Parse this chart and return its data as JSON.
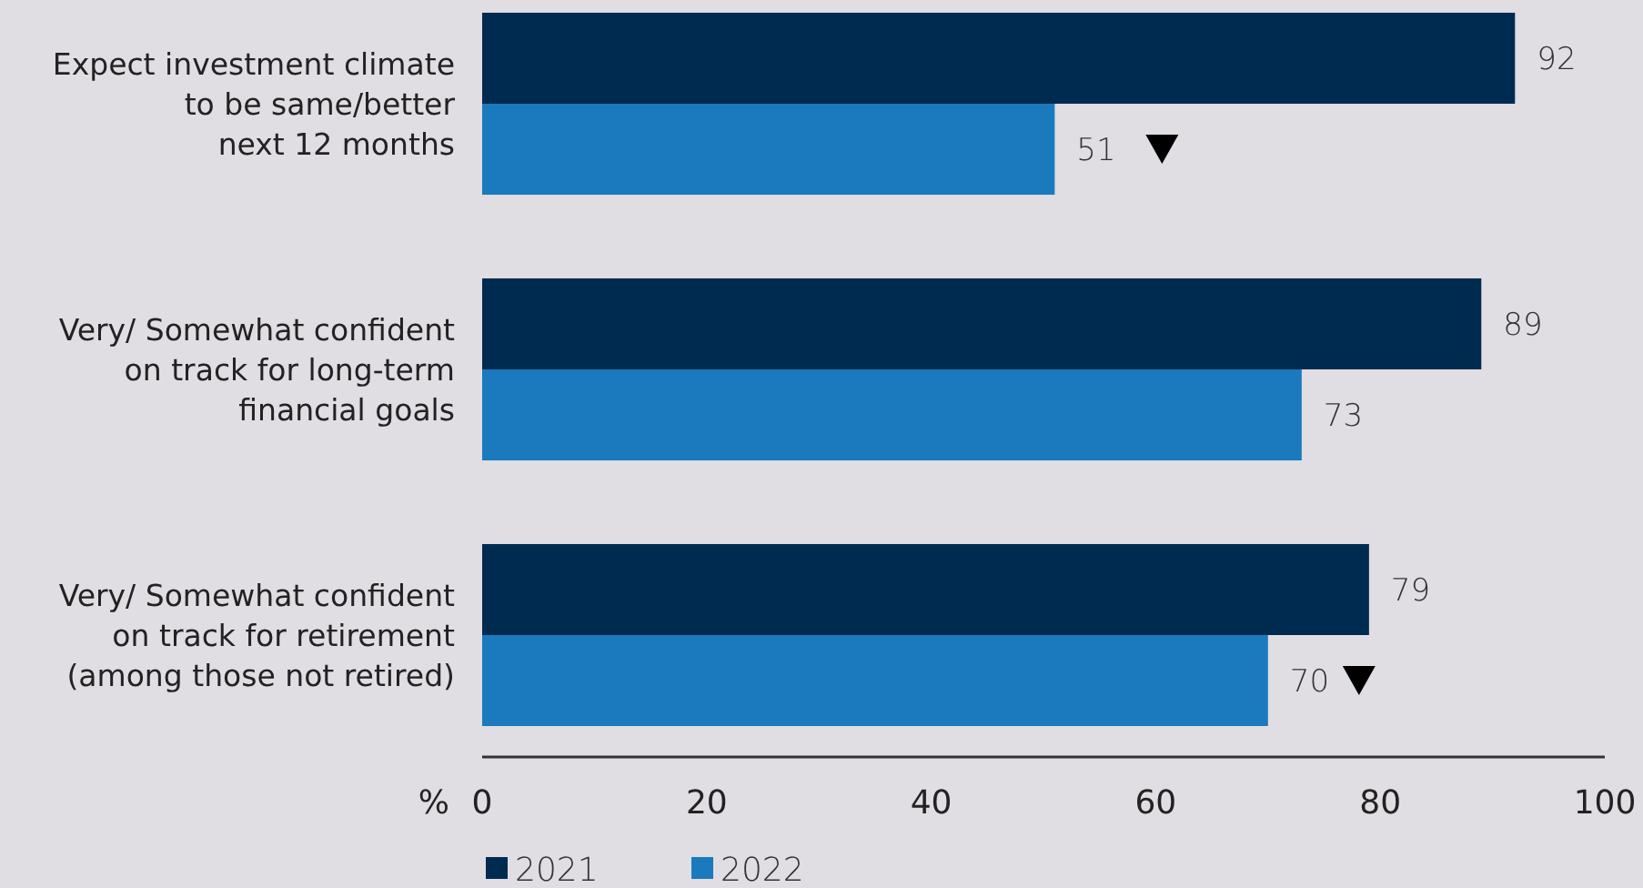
{
  "chart_data": {
    "type": "bar",
    "orientation": "horizontal",
    "xlabel": "%",
    "categories": [
      "Expect investment climate\nto be same/better\nnext 12 months",
      "Very/ Somewhat confident\non track for long-term\nfinancial goals",
      "Very/ Somewhat confident\non track for retirement\n(among those not retired)"
    ],
    "series": [
      {
        "name": "2021",
        "color": "#002b50",
        "values": [
          92,
          89,
          79
        ]
      },
      {
        "name": "2022",
        "color": "#1a7abd",
        "values": [
          51,
          73,
          70
        ]
      }
    ],
    "xlim": [
      0,
      100
    ],
    "xticks": [
      0,
      20,
      40,
      60,
      80,
      100
    ],
    "data_labels": true,
    "grid": false,
    "legend": "bottom"
  }
}
